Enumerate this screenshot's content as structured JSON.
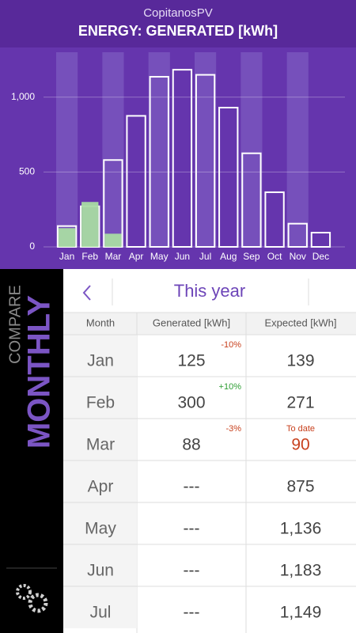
{
  "header": {
    "app": "CopitanosPV",
    "title": "ENERGY: GENERATED [kWh]"
  },
  "chart_data": {
    "type": "bar",
    "categories": [
      "Jan",
      "Feb",
      "Mar",
      "Apr",
      "May",
      "Jun",
      "Jul",
      "Aug",
      "Sep",
      "Oct",
      "Nov",
      "Dec"
    ],
    "series": [
      {
        "color": "#ffffff",
        "values": [
          139,
          271,
          580,
          875,
          1136,
          1183,
          1149,
          930,
          625,
          365,
          155,
          95
        ]
      },
      {
        "color": "#a9dca3",
        "values": [
          125,
          300,
          88,
          null,
          null,
          null,
          null,
          null,
          null,
          null,
          null,
          null
        ]
      }
    ],
    "ylim": [
      0,
      1300
    ],
    "yticks": [
      0,
      500,
      {
        "value": 1000,
        "label": "1,000"
      }
    ],
    "grid": true
  },
  "sidebar": {
    "compare": "COMPARE",
    "mode": "MONTHLY"
  },
  "table": {
    "period": "This year",
    "columns": [
      "Month",
      "Generated [kWh]",
      "Expected [kWh]"
    ],
    "rows": [
      {
        "month": "Jan",
        "generated": "125",
        "change": "-10%",
        "expected": "139"
      },
      {
        "month": "Feb",
        "generated": "300",
        "change": "+10%",
        "expected": "271"
      },
      {
        "month": "Mar",
        "generated": "88",
        "change": "-3%",
        "note": "To date",
        "expected": "90"
      },
      {
        "month": "Apr",
        "generated": "---",
        "expected": "875"
      },
      {
        "month": "May",
        "generated": "---",
        "expected": "1,136"
      },
      {
        "month": "Jun",
        "generated": "---",
        "expected": "1,183"
      },
      {
        "month": "Jul",
        "generated": "---",
        "expected": "1,149"
      }
    ]
  }
}
